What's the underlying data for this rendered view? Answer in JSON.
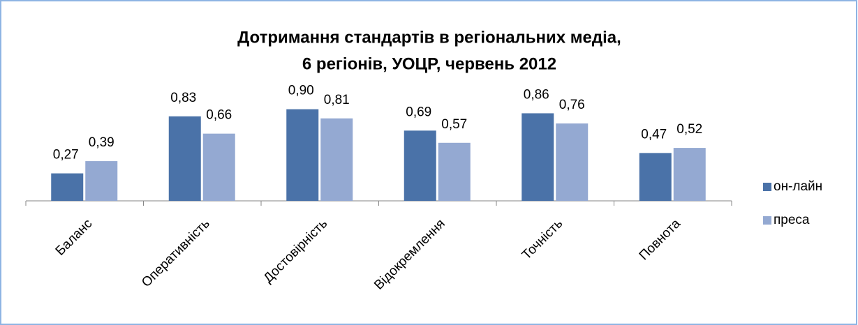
{
  "chart_data": {
    "type": "bar",
    "title": [
      "Дотримання стандартів в регіональних медіа,",
      "6 регіонів, УОЦР, червень 2012"
    ],
    "categories": [
      "Баланс",
      "Оперативність",
      "Достовірність",
      "Відокремлення",
      "Точність",
      "Повнота"
    ],
    "series": [
      {
        "name": "он-лайн",
        "color": "#4a72a8",
        "values": [
          0.27,
          0.83,
          0.9,
          0.69,
          0.86,
          0.47
        ],
        "value_labels": [
          "0,27",
          "0,83",
          "0,90",
          "0,69",
          "0,86",
          "0,47"
        ]
      },
      {
        "name": "преса",
        "color": "#94a9d2",
        "values": [
          0.39,
          0.66,
          0.81,
          0.57,
          0.76,
          0.52
        ],
        "value_labels": [
          "0,39",
          "0,66",
          "0,81",
          "0,57",
          "0,76",
          "0,52"
        ]
      }
    ],
    "ylim": [
      0,
      1
    ],
    "legend": "right"
  }
}
